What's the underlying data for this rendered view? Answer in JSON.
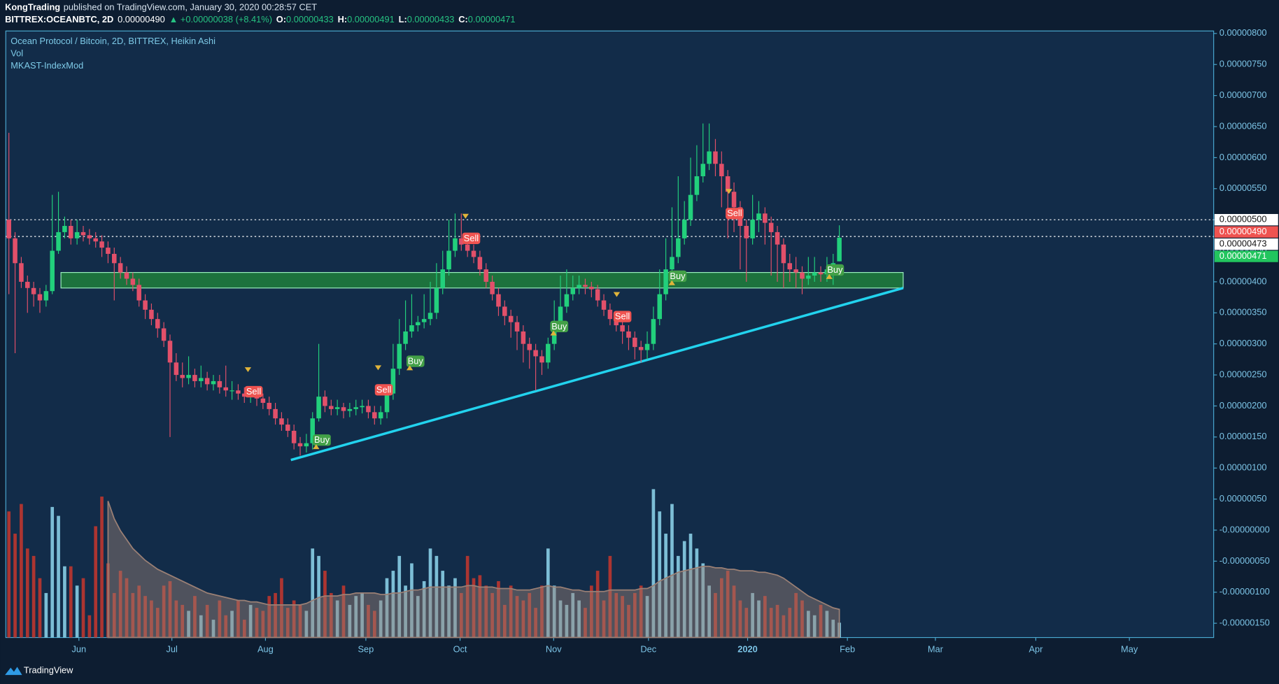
{
  "header": {
    "author": "KongTrading",
    "published": "published on TradingView.com, January 30, 2020 00:28:57 CET",
    "symbol": "BITTREX:OCEANBTC, 2D",
    "last": "0.00000490",
    "change": "▲ +0.00000038 (+8.41%)",
    "ohlc": [
      {
        "key": "O:",
        "value": "0.00000433"
      },
      {
        "key": "H:",
        "value": "0.00000491"
      },
      {
        "key": "L:",
        "value": "0.00000433"
      },
      {
        "key": "C:",
        "value": "0.00000471"
      }
    ]
  },
  "footer": {
    "brand": "TradingView"
  },
  "chart_data": {
    "type": "candlestick",
    "title": "Ocean Protocol / Bitcoin, 2D, BITTREX, Heikin Ashi",
    "indicators": [
      "Vol",
      "MKAST-IndexMod"
    ],
    "up_color": "#22d07c",
    "down_color": "#e2506a",
    "xlim": [
      -0.5,
      194.4
    ],
    "xticks": [
      {
        "value": 11.3,
        "label": "Jun"
      },
      {
        "value": 26.3,
        "label": "Jul"
      },
      {
        "value": 41.4,
        "label": "Aug"
      },
      {
        "value": 57.6,
        "label": "Sep"
      },
      {
        "value": 72.8,
        "label": "Oct"
      },
      {
        "value": 87.9,
        "label": "Nov"
      },
      {
        "value": 103.2,
        "label": "Dec"
      },
      {
        "value": 119.2,
        "label": "2020"
      },
      {
        "value": 135.3,
        "label": "Feb"
      },
      {
        "value": 149.5,
        "label": "Mar"
      },
      {
        "value": 165.7,
        "label": "Apr"
      },
      {
        "value": 180.8,
        "label": "May"
      }
    ],
    "ylim": [
      -1.73e-06,
      8.04e-06
    ],
    "yticks": [
      {
        "value": 8e-06,
        "label": "0.00000800"
      },
      {
        "value": 7.5e-06,
        "label": "0.00000750"
      },
      {
        "value": 7e-06,
        "label": "0.00000700"
      },
      {
        "value": 6.5e-06,
        "label": "0.00000650"
      },
      {
        "value": 6e-06,
        "label": "0.00000600"
      },
      {
        "value": 5.5e-06,
        "label": "0.00000550"
      },
      {
        "value": 5e-06,
        "label": "0.00000500"
      },
      {
        "value": 4.5e-06,
        "label": "0.00000450"
      },
      {
        "value": 4e-06,
        "label": "0.00000400"
      },
      {
        "value": 3.5e-06,
        "label": "0.00000350"
      },
      {
        "value": 3e-06,
        "label": "0.00000300"
      },
      {
        "value": 2.5e-06,
        "label": "0.00000250"
      },
      {
        "value": 2e-06,
        "label": "0.00000200"
      },
      {
        "value": 1.5e-06,
        "label": "0.00000150"
      },
      {
        "value": 1e-06,
        "label": "0.00000100"
      },
      {
        "value": 5e-07,
        "label": "0.00000050"
      },
      {
        "value": 0,
        "label": "-0.00000000"
      },
      {
        "value": -5e-07,
        "label": "-0.00000050"
      },
      {
        "value": -1e-06,
        "label": "-0.00000100"
      },
      {
        "value": -1.5e-06,
        "label": "-0.00000150"
      }
    ],
    "open": [
      5e-06,
      4.7e-06,
      4.3e-06,
      4e-06,
      3.9e-06,
      3.8e-06,
      3.7e-06,
      3.85e-06,
      4.5e-06,
      4.8e-06,
      4.9e-06,
      4.7e-06,
      4.8e-06,
      4.75e-06,
      4.7e-06,
      4.65e-06,
      4.55e-06,
      4.45e-06,
      4.3e-06,
      4.15e-06,
      4.05e-06,
      3.95e-06,
      3.7e-06,
      3.55e-06,
      3.4e-06,
      3.25e-06,
      3.05e-06,
      2.7e-06,
      2.5e-06,
      2.45e-06,
      2.5e-06,
      2.4e-06,
      2.45e-06,
      2.35e-06,
      2.4e-06,
      2.3e-06,
      2.25e-06,
      2.25e-06,
      2.2e-06,
      2.15e-06,
      2.2e-06,
      2.12e-06,
      2.05e-06,
      1.95e-06,
      1.8e-06,
      1.7e-06,
      1.6e-06,
      1.4e-06,
      1.35e-06,
      1.4e-06,
      1.8e-06,
      2.15e-06,
      2e-06,
      1.95e-06,
      1.98e-06,
      1.92e-06,
      1.95e-06,
      1.98e-06,
      2e-06,
      1.9e-06,
      1.8e-06,
      1.9e-06,
      2.2e-06,
      2.6e-06,
      3e-06,
      3.2e-06,
      3.3e-06,
      3.35e-06,
      3.4e-06,
      3.5e-06,
      3.9e-06,
      4.2e-06,
      4.5e-06,
      4.7e-06,
      4.6e-06,
      4.5e-06,
      4.4e-06,
      4.2e-06,
      4e-06,
      3.8e-06,
      3.6e-06,
      3.45e-06,
      3.35e-06,
      3.2e-06,
      3e-06,
      2.9e-06,
      2.8e-06,
      2.7e-06,
      3e-06,
      3.3e-06,
      3.6e-06,
      3.8e-06,
      3.9e-06,
      3.95e-06,
      3.92e-06,
      3.88e-06,
      3.7e-06,
      3.55e-06,
      3.4e-06,
      3.3e-06,
      3.2e-06,
      3.1e-06,
      2.95e-06,
      2.9e-06,
      3e-06,
      3.4e-06,
      3.8e-06,
      4.2e-06,
      4.4e-06,
      4.7e-06,
      5e-06,
      5.4e-06,
      5.7e-06,
      5.9e-06,
      6.1e-06,
      5.9e-06,
      5.7e-06,
      5.45e-06,
      5.2e-06,
      4.9e-06,
      4.7e-06,
      5e-06,
      5.1e-06,
      4.95e-06,
      4.8e-06,
      4.6e-06,
      4.3e-06,
      4.2e-06,
      4.15e-06,
      4.05e-06,
      4.1e-06,
      4.15e-06,
      4.12e-06,
      4.2e-06,
      4.33e-06
    ],
    "high": [
      6.4e-06,
      4.8e-06,
      4.4e-06,
      4.1e-06,
      4e-06,
      3.9e-06,
      3.95e-06,
      5.4e-06,
      5.45e-06,
      5.05e-06,
      5e-06,
      5e-06,
      4.9e-06,
      4.85e-06,
      4.8e-06,
      4.75e-06,
      4.65e-06,
      4.55e-06,
      4.4e-06,
      4.25e-06,
      4.15e-06,
      4.05e-06,
      3.8e-06,
      3.65e-06,
      3.5e-06,
      3.35e-06,
      3.15e-06,
      2.85e-06,
      2.7e-06,
      2.8e-06,
      2.6e-06,
      2.65e-06,
      2.55e-06,
      2.5e-06,
      2.5e-06,
      2.65e-06,
      2.4e-06,
      2.35e-06,
      2.3e-06,
      2.3e-06,
      2.3e-06,
      2.2e-06,
      2.15e-06,
      2.05e-06,
      1.9e-06,
      1.8e-06,
      1.7e-06,
      1.5e-06,
      1.55e-06,
      1.9e-06,
      3e-06,
      2.25e-06,
      2.1e-06,
      2.1e-06,
      2.05e-06,
      2.05e-06,
      2.1e-06,
      2.1e-06,
      2.1e-06,
      2e-06,
      2e-06,
      2.3e-06,
      3e-06,
      3.4e-06,
      3.7e-06,
      3.8e-06,
      3.45e-06,
      3.8e-06,
      4e-06,
      4.3e-06,
      4.5e-06,
      5e-06,
      5.1e-06,
      5.1e-06,
      4.7e-06,
      4.6e-06,
      4.5e-06,
      4.3e-06,
      4.1e-06,
      3.9e-06,
      3.7e-06,
      3.55e-06,
      3.45e-06,
      3.3e-06,
      3.1e-06,
      3e-06,
      2.9e-06,
      3.1e-06,
      3.7e-06,
      4.1e-06,
      4.2e-06,
      4.1e-06,
      4.1e-06,
      4.05e-06,
      4e-06,
      3.95e-06,
      3.8e-06,
      3.65e-06,
      3.5e-06,
      3.4e-06,
      3.3e-06,
      3.2e-06,
      3.05e-06,
      3.2e-06,
      3.6e-06,
      4.2e-06,
      4.7e-06,
      5.2e-06,
      5.7e-06,
      5.3e-06,
      6e-06,
      6.2e-06,
      6.55e-06,
      6.55e-06,
      6.3e-06,
      6.1e-06,
      5.8e-06,
      5.6e-06,
      5.3e-06,
      5e-06,
      5.4e-06,
      5.3e-06,
      5.2e-06,
      5.05e-06,
      4.9e-06,
      4.7e-06,
      4.45e-06,
      4.4e-06,
      4.25e-06,
      4.4e-06,
      4.4e-06,
      4.25e-06,
      4.4e-06,
      4.45e-06,
      4.91e-06
    ],
    "low": [
      3.8e-06,
      2.85e-06,
      3.9e-06,
      3.5e-06,
      3.6e-06,
      3.5e-06,
      3.6e-06,
      3.8e-06,
      4.45e-06,
      4.7e-06,
      4.6e-06,
      4.6e-06,
      4.65e-06,
      4.6e-06,
      4.55e-06,
      4.4e-06,
      4.3e-06,
      3.7e-06,
      4.05e-06,
      3.95e-06,
      3.85e-06,
      3.6e-06,
      3.4e-06,
      3.3e-06,
      3.1e-06,
      2.95e-06,
      1.5e-06,
      2.4e-06,
      2.3e-06,
      2.35e-06,
      2.3e-06,
      2.3e-06,
      2.25e-06,
      2.25e-06,
      2.2e-06,
      2.15e-06,
      2.1e-06,
      2.1e-06,
      2.05e-06,
      2.05e-06,
      2e-06,
      1.95e-06,
      1.85e-06,
      1.7e-06,
      1.6e-06,
      1.5e-06,
      1.3e-06,
      1.2e-06,
      1.25e-06,
      1.3e-06,
      1.75e-06,
      1.9e-06,
      1.85e-06,
      1.85e-06,
      1.8e-06,
      1.82e-06,
      1.85e-06,
      1.88e-06,
      1.8e-06,
      1.7e-06,
      1.7e-06,
      1.8e-06,
      2.1e-06,
      2.5e-06,
      2.9e-06,
      3.1e-06,
      3.2e-06,
      3.25e-06,
      3.3e-06,
      3.4e-06,
      3.8e-06,
      4.1e-06,
      4.4e-06,
      4.5e-06,
      4.4e-06,
      4.3e-06,
      4.1e-06,
      3.9e-06,
      3.7e-06,
      3.45e-06,
      3.3e-06,
      3.1e-06,
      2.9e-06,
      2.7e-06,
      2.6e-06,
      2.25e-06,
      2.5e-06,
      2.6e-06,
      2.9e-06,
      3.2e-06,
      3.5e-06,
      3.7e-06,
      3.8e-06,
      3.8e-06,
      3.75e-06,
      3.6e-06,
      3.45e-06,
      3.3e-06,
      3.2e-06,
      3e-06,
      2.9e-06,
      2.75e-06,
      2.7e-06,
      2.75e-06,
      2.9e-06,
      3.3e-06,
      3.7e-06,
      4.1e-06,
      4.3e-06,
      4.6e-06,
      4.9e-06,
      5.3e-06,
      5.6e-06,
      5.8e-06,
      5.7e-06,
      5.2e-06,
      4.7e-06,
      4.8e-06,
      4.2e-06,
      4e-06,
      4.6e-06,
      4.8e-06,
      4.6e-06,
      4.1e-06,
      4e-06,
      3.9e-06,
      4e-06,
      3.9e-06,
      3.8e-06,
      3.95e-06,
      4e-06,
      4e-06,
      4e-06,
      3.95e-06,
      4.33e-06
    ],
    "close": [
      4.7e-06,
      4.3e-06,
      4e-06,
      3.9e-06,
      3.8e-06,
      3.7e-06,
      3.85e-06,
      4.5e-06,
      4.8e-06,
      4.9e-06,
      4.7e-06,
      4.8e-06,
      4.75e-06,
      4.7e-06,
      4.65e-06,
      4.55e-06,
      4.45e-06,
      4.3e-06,
      4.15e-06,
      4.05e-06,
      3.95e-06,
      3.7e-06,
      3.55e-06,
      3.4e-06,
      3.25e-06,
      3.05e-06,
      2.7e-06,
      2.5e-06,
      2.45e-06,
      2.5e-06,
      2.4e-06,
      2.45e-06,
      2.35e-06,
      2.4e-06,
      2.3e-06,
      2.25e-06,
      2.25e-06,
      2.2e-06,
      2.15e-06,
      2.2e-06,
      2.12e-06,
      2.05e-06,
      1.95e-06,
      1.8e-06,
      1.7e-06,
      1.6e-06,
      1.4e-06,
      1.35e-06,
      1.4e-06,
      1.8e-06,
      2.15e-06,
      2e-06,
      1.95e-06,
      1.98e-06,
      1.92e-06,
      1.95e-06,
      1.98e-06,
      2e-06,
      1.9e-06,
      1.8e-06,
      1.9e-06,
      2.2e-06,
      2.6e-06,
      3e-06,
      3.2e-06,
      3.3e-06,
      3.35e-06,
      3.4e-06,
      3.5e-06,
      3.9e-06,
      4.2e-06,
      4.5e-06,
      4.7e-06,
      4.6e-06,
      4.5e-06,
      4.4e-06,
      4.2e-06,
      4e-06,
      3.8e-06,
      3.6e-06,
      3.45e-06,
      3.35e-06,
      3.2e-06,
      3e-06,
      2.9e-06,
      2.8e-06,
      2.7e-06,
      3e-06,
      3.3e-06,
      3.6e-06,
      3.8e-06,
      3.9e-06,
      3.95e-06,
      3.92e-06,
      3.88e-06,
      3.7e-06,
      3.55e-06,
      3.4e-06,
      3.3e-06,
      3.2e-06,
      3.1e-06,
      2.95e-06,
      2.9e-06,
      3e-06,
      3.4e-06,
      3.8e-06,
      4.2e-06,
      4.4e-06,
      4.7e-06,
      5e-06,
      5.4e-06,
      5.7e-06,
      5.9e-06,
      6.1e-06,
      5.9e-06,
      5.7e-06,
      5.45e-06,
      5.2e-06,
      4.9e-06,
      4.7e-06,
      5e-06,
      5.1e-06,
      4.95e-06,
      4.8e-06,
      4.6e-06,
      4.3e-06,
      4.2e-06,
      4.15e-06,
      4.05e-06,
      4.1e-06,
      4.15e-06,
      4.12e-06,
      4.2e-06,
      4.3e-06,
      4.71e-06
    ],
    "volume": {
      "up_color": "#8fd8ee",
      "down_color": "#c8372d",
      "ma_color": "#9b8075",
      "values": [
        85,
        70,
        90,
        60,
        55,
        40,
        30,
        88,
        82,
        48,
        48,
        35,
        40,
        15,
        75,
        95,
        50,
        30,
        45,
        40,
        30,
        35,
        28,
        25,
        20,
        35,
        38,
        25,
        22,
        18,
        28,
        15,
        22,
        12,
        25,
        15,
        18,
        25,
        12,
        22,
        20,
        18,
        28,
        30,
        40,
        20,
        25,
        22,
        18,
        60,
        55,
        45,
        30,
        25,
        35,
        22,
        28,
        30,
        22,
        18,
        25,
        40,
        45,
        55,
        35,
        50,
        28,
        38,
        60,
        55,
        45,
        35,
        40,
        30,
        55,
        40,
        42,
        35,
        30,
        38,
        22,
        35,
        28,
        25,
        30,
        20,
        35,
        60,
        35,
        25,
        22,
        30,
        25,
        20,
        35,
        45,
        25,
        55,
        30,
        28,
        22,
        30,
        35,
        28,
        100,
        85,
        70,
        90,
        55,
        65,
        70,
        60,
        50,
        35,
        30,
        40,
        45,
        35,
        25,
        20,
        30,
        25,
        28,
        20,
        22,
        15,
        20,
        30,
        25,
        18,
        15,
        22,
        18,
        12,
        10
      ],
      "ma": [
        null,
        null,
        null,
        null,
        null,
        null,
        null,
        null,
        null,
        null,
        null,
        null,
        null,
        null,
        null,
        null,
        92,
        80,
        72,
        66,
        60,
        56,
        52,
        49,
        46,
        44,
        42,
        40,
        38,
        36,
        34,
        32,
        30,
        29,
        28,
        27,
        26,
        25,
        25,
        24,
        24,
        23,
        22,
        22,
        22,
        22,
        22,
        22,
        23,
        25,
        27,
        28,
        28,
        28,
        29,
        29,
        30,
        30,
        30,
        30,
        29,
        29,
        30,
        30,
        31,
        32,
        32,
        33,
        34,
        34,
        34,
        34,
        34,
        34,
        35,
        35,
        34,
        34,
        34,
        33,
        33,
        33,
        32,
        32,
        32,
        33,
        34,
        35,
        34,
        34,
        33,
        32,
        32,
        31,
        31,
        31,
        31,
        32,
        32,
        32,
        32,
        32,
        33,
        33,
        35,
        38,
        40,
        42,
        44,
        45,
        46,
        47,
        48,
        48,
        47,
        47,
        46,
        46,
        45,
        45,
        45,
        44,
        44,
        43,
        42,
        40,
        37,
        34,
        31,
        28,
        26,
        24,
        22,
        20,
        19
      ]
    },
    "zone": {
      "x": [
        8.4,
        144.3
      ],
      "y": [
        3.9e-06,
        4.15e-06
      ],
      "color": "#1f7a3c"
    },
    "trendline": {
      "x": [
        45.5,
        144.3
      ],
      "y": [
        1.13e-06,
        3.9e-06
      ],
      "color": "#22d3ee"
    },
    "levels": [
      {
        "value": 5e-06,
        "color": "#ffffff"
      },
      {
        "value": 4.73e-06,
        "color": "#ffffff"
      }
    ],
    "price_labels": [
      {
        "value": 5e-06,
        "label": "0.00000500",
        "color": "#ffffff"
      },
      {
        "value": 4.9e-06,
        "label": "0.00000490",
        "color": "#ef5350"
      },
      {
        "value": 4.73e-06,
        "label": "0.00000473",
        "color": "#ffffff"
      },
      {
        "value": 4.71e-06,
        "label": "0.00000471",
        "color": "#22c55e"
      }
    ],
    "signals": [
      {
        "label": "Sell",
        "x": 39.5,
        "y": 2.23e-06
      },
      {
        "label": "Buy",
        "x": 50.5,
        "y": 1.45e-06
      },
      {
        "label": "Sell",
        "x": 60.5,
        "y": 2.26e-06
      },
      {
        "label": "Buy",
        "x": 65.6,
        "y": 2.72e-06
      },
      {
        "label": "Sell",
        "x": 74.6,
        "y": 4.7e-06
      },
      {
        "label": "Buy",
        "x": 88.8,
        "y": 3.28e-06
      },
      {
        "label": "Sell",
        "x": 99,
        "y": 3.44e-06
      },
      {
        "label": "Buy",
        "x": 107.9,
        "y": 4.09e-06
      },
      {
        "label": "Sell",
        "x": 117.1,
        "y": 5.1e-06
      },
      {
        "label": "Buy",
        "x": 133.3,
        "y": 4.19e-06
      }
    ]
  }
}
